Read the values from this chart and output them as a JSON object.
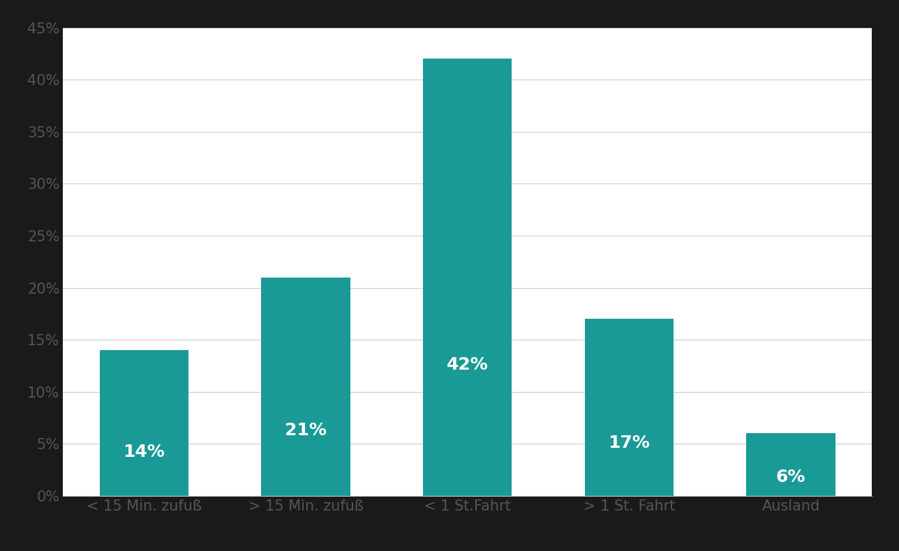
{
  "categories": [
    "< 15 Min. zufuß",
    "> 15 Min. zufuß",
    "< 1 St.Fahrt",
    "> 1 St. Fahrt",
    "Ausland"
  ],
  "values": [
    14,
    21,
    42,
    17,
    6
  ],
  "labels": [
    "14%",
    "21%",
    "42%",
    "17%",
    "6%"
  ],
  "bar_color": "#1a9a96",
  "background_color": "#1a1a1a",
  "plot_background_color": "#ffffff",
  "grid_color": "#cccccc",
  "text_color": "#ffffff",
  "tick_color": "#555555",
  "ylim": [
    0,
    45
  ],
  "yticks": [
    0,
    5,
    10,
    15,
    20,
    25,
    30,
    35,
    40,
    45
  ],
  "label_fontsize": 18,
  "tick_fontsize": 15,
  "bar_width": 0.55,
  "figsize": [
    12.88,
    7.9
  ],
  "dpi": 100
}
